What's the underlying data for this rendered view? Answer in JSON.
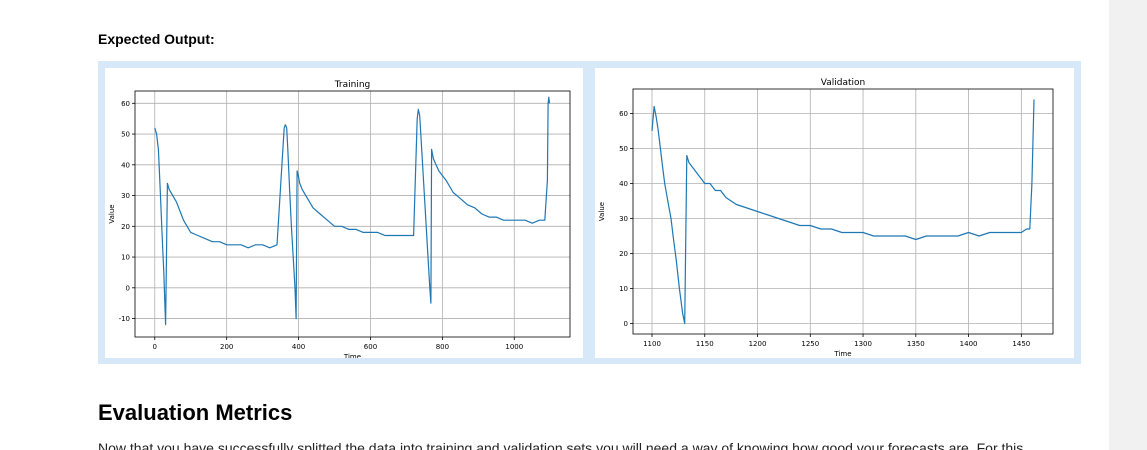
{
  "expected_label": "Expected Output:",
  "section_heading": "Evaluation Metrics",
  "intro_text": "Now that you have successfully splitted the data into training and validation sets you will need a way of knowing how good your forecasts are. For this",
  "colors": {
    "line": "#1f77b4",
    "grid": "#b0b0b0",
    "frame": "#d7e9f8"
  },
  "chart_data": [
    {
      "type": "line",
      "title": "Training",
      "xlabel": "Time",
      "ylabel": "Value",
      "xlim": [
        -55,
        1155
      ],
      "ylim": [
        -16,
        64
      ],
      "xticks": [
        0,
        200,
        400,
        600,
        800,
        1000
      ],
      "yticks": [
        -10,
        0,
        10,
        20,
        30,
        40,
        50,
        60
      ],
      "grid": true,
      "series": [
        {
          "x": [
            0,
            5,
            10,
            15,
            20,
            25,
            30,
            35,
            40,
            50,
            60,
            70,
            80,
            90,
            100,
            120,
            140,
            160,
            180,
            200,
            220,
            240,
            260,
            280,
            300,
            320,
            340,
            360,
            363,
            367,
            370,
            375,
            380,
            385,
            390,
            393,
            396,
            400,
            403,
            410,
            420,
            440,
            460,
            480,
            500,
            520,
            540,
            560,
            580,
            600,
            620,
            640,
            660,
            680,
            700,
            720,
            730,
            733,
            737,
            740,
            745,
            750,
            755,
            760,
            765,
            768,
            770,
            775,
            790,
            810,
            830,
            850,
            870,
            890,
            910,
            930,
            950,
            970,
            990,
            1010,
            1030,
            1050,
            1070,
            1085,
            1092,
            1094,
            1096,
            1098
          ],
          "y": [
            52,
            50,
            45,
            32,
            18,
            5,
            -12,
            34,
            32,
            30,
            28,
            25,
            22,
            20,
            18,
            17,
            16,
            15,
            15,
            14,
            14,
            14,
            13,
            14,
            14,
            13,
            14,
            52,
            53,
            52,
            45,
            32,
            20,
            10,
            0,
            -10,
            38,
            36,
            34,
            32,
            30,
            26,
            24,
            22,
            20,
            20,
            19,
            19,
            18,
            18,
            18,
            17,
            17,
            17,
            17,
            17,
            55,
            58,
            56,
            50,
            40,
            30,
            20,
            10,
            0,
            -5,
            45,
            42,
            38,
            35,
            31,
            29,
            27,
            26,
            24,
            23,
            23,
            22,
            22,
            22,
            22,
            21,
            22,
            22,
            35,
            60,
            62,
            60
          ]
        }
      ]
    },
    {
      "type": "line",
      "title": "Validation",
      "xlabel": "Time",
      "ylabel": "Value",
      "xlim": [
        1082,
        1480
      ],
      "ylim": [
        -3,
        67
      ],
      "xticks": [
        1100,
        1150,
        1200,
        1250,
        1300,
        1350,
        1400,
        1450
      ],
      "yticks": [
        0,
        10,
        20,
        30,
        40,
        50,
        60
      ],
      "grid": true,
      "series": [
        {
          "x": [
            1100,
            1102,
            1104,
            1106,
            1108,
            1110,
            1112,
            1115,
            1118,
            1120,
            1123,
            1126,
            1129,
            1131,
            1133,
            1135,
            1140,
            1145,
            1150,
            1155,
            1160,
            1165,
            1170,
            1175,
            1180,
            1190,
            1200,
            1210,
            1220,
            1230,
            1240,
            1250,
            1260,
            1270,
            1280,
            1290,
            1300,
            1310,
            1320,
            1330,
            1340,
            1350,
            1360,
            1370,
            1380,
            1390,
            1400,
            1410,
            1420,
            1430,
            1440,
            1450,
            1455,
            1458,
            1460,
            1462
          ],
          "y": [
            55,
            62,
            59,
            55,
            50,
            45,
            40,
            35,
            30,
            25,
            18,
            10,
            3,
            0,
            48,
            46,
            44,
            42,
            40,
            40,
            38,
            38,
            36,
            35,
            34,
            33,
            32,
            31,
            30,
            29,
            28,
            28,
            27,
            27,
            26,
            26,
            26,
            25,
            25,
            25,
            25,
            24,
            25,
            25,
            25,
            25,
            26,
            25,
            26,
            26,
            26,
            26,
            27,
            27,
            40,
            64
          ]
        }
      ]
    }
  ]
}
